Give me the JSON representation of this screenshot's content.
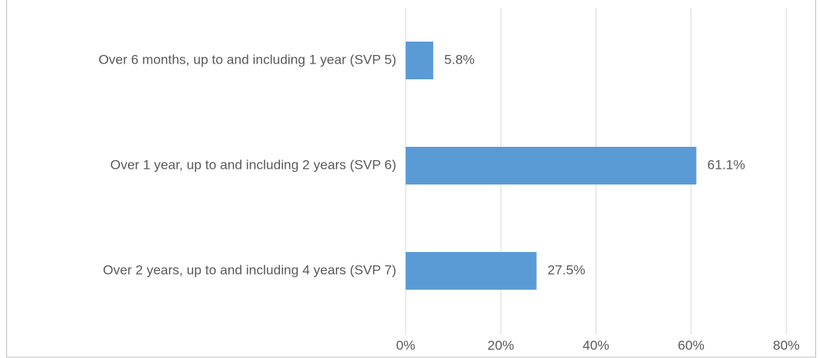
{
  "chart_data": {
    "type": "hbar",
    "categories": [
      "Over 6 months, up to and including 1 year (SVP 5)",
      "Over 1 year, up to and including 2 years (SVP 6)",
      "Over 2 years, up to and including 4 years (SVP 7)"
    ],
    "values": [
      5.8,
      61.1,
      27.5
    ],
    "value_labels": [
      "5.8%",
      "61.1%",
      "27.5%"
    ],
    "color": "#5b9bd5",
    "xlim": [
      0,
      80
    ],
    "xticks": [
      {
        "value": 0,
        "label": "0%"
      },
      {
        "value": 20,
        "label": "20%"
      },
      {
        "value": 40,
        "label": "40%"
      },
      {
        "value": 60,
        "label": "60%"
      },
      {
        "value": 80,
        "label": "80%"
      }
    ],
    "grid": true
  }
}
